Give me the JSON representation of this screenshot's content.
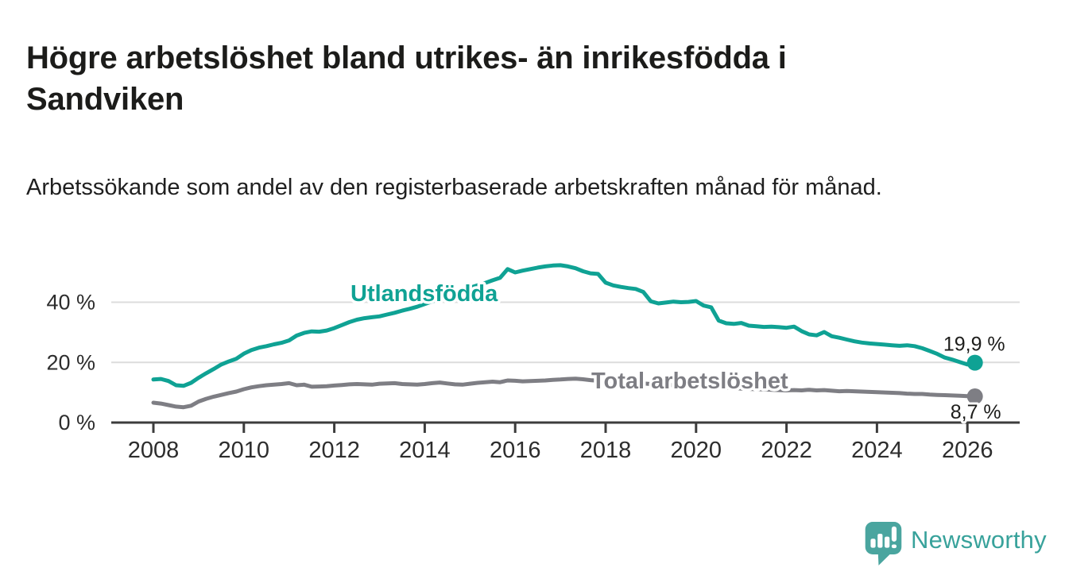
{
  "header": {
    "title": "Högre arbetslöshet bland utrikes- än inrikesfödda i Sandviken",
    "subtitle": "Arbetssökande som andel av den registerbaserade arbetskraften månad för månad."
  },
  "branding": {
    "logo_text": "Newsworthy",
    "logo_color": "#4aa59f",
    "logo_text_color": "#38a29b"
  },
  "chart_data": {
    "type": "line",
    "title": "Högre arbetslöshet bland utrikes- än inrikesfödda i Sandviken",
    "subtitle": "Arbetssökande som andel av den registerbaserade arbetskraften månad för månad.",
    "unit": "%",
    "x_start": 2008,
    "x_step": 0.1666667,
    "xlim": [
      2007.05,
      2027.15
    ],
    "ylim": [
      0,
      56
    ],
    "grid": "horizontal-only",
    "legend_position": "inline-labels",
    "x_ticks": [
      2008,
      2010,
      2012,
      2014,
      2016,
      2018,
      2020,
      2022,
      2024,
      2026
    ],
    "x_tick_labels": [
      "2008",
      "2010",
      "2012",
      "2014",
      "2016",
      "2018",
      "2020",
      "2022",
      "2024",
      "2026"
    ],
    "y_ticks": [
      0,
      20,
      40
    ],
    "y_tick_labels": [
      "0 %",
      "20 %",
      "40 %"
    ],
    "colors": {
      "grid": "#dcdcdc",
      "axis": "#3c3c3c",
      "tick_text": "#2d2d2d",
      "annotation_text": "#1d1d1b"
    },
    "series": [
      {
        "name": "Utlandsfödda",
        "color": "#0fa294",
        "end_label": "19,9 %",
        "end_value": 19.9,
        "values": [
          14.3,
          14.5,
          13.8,
          12.4,
          12.2,
          13.2,
          14.9,
          16.4,
          17.8,
          19.3,
          20.3,
          21.2,
          22.9,
          24.1,
          24.9,
          25.4,
          26.0,
          26.5,
          27.3,
          28.9,
          29.8,
          30.3,
          30.2,
          30.6,
          31.4,
          32.4,
          33.4,
          34.2,
          34.7,
          35.0,
          35.3,
          35.9,
          36.5,
          37.2,
          37.8,
          38.5,
          39.4,
          40.3,
          41.2,
          42.2,
          43.1,
          44.0,
          44.8,
          45.6,
          46.4,
          47.3,
          48.1,
          51.0,
          49.9,
          50.5,
          51.0,
          51.5,
          51.9,
          52.2,
          52.3,
          51.9,
          51.3,
          50.3,
          49.6,
          49.4,
          46.5,
          45.6,
          45.1,
          44.7,
          44.4,
          43.4,
          40.3,
          39.6,
          39.9,
          40.2,
          40.0,
          40.1,
          40.4,
          38.9,
          38.3,
          33.9,
          33.0,
          32.8,
          33.1,
          32.2,
          32.0,
          31.8,
          31.9,
          31.7,
          31.5,
          31.9,
          30.4,
          29.3,
          29.0,
          30.1,
          28.7,
          28.2,
          27.6,
          27.0,
          26.6,
          26.3,
          26.1,
          25.9,
          25.7,
          25.5,
          25.7,
          25.4,
          24.7,
          23.8,
          22.8,
          21.6,
          20.9,
          20.1,
          19.3,
          19.9
        ]
      },
      {
        "name": "Total arbetslöshet",
        "color": "#7e7e84",
        "end_label": "8,7 %",
        "end_value": 8.7,
        "values": [
          6.6,
          6.3,
          5.8,
          5.3,
          5.1,
          5.6,
          7.0,
          7.9,
          8.6,
          9.2,
          9.8,
          10.3,
          11.1,
          11.7,
          12.1,
          12.4,
          12.6,
          12.8,
          13.1,
          12.4,
          12.6,
          11.9,
          12.0,
          12.1,
          12.3,
          12.5,
          12.7,
          12.8,
          12.7,
          12.6,
          12.9,
          13.0,
          13.1,
          12.8,
          12.7,
          12.6,
          12.8,
          13.1,
          13.3,
          13.0,
          12.7,
          12.6,
          12.9,
          13.2,
          13.4,
          13.6,
          13.4,
          14.0,
          13.9,
          13.7,
          13.8,
          13.9,
          14.0,
          14.2,
          14.3,
          14.5,
          14.6,
          14.4,
          14.1,
          13.9,
          13.8,
          13.7,
          13.5,
          13.3,
          13.2,
          13.0,
          12.8,
          12.7,
          12.6,
          12.4,
          12.3,
          12.2,
          12.1,
          12.0,
          11.9,
          11.7,
          11.6,
          11.5,
          11.3,
          11.2,
          11.1,
          11.0,
          10.9,
          10.8,
          10.7,
          10.8,
          10.7,
          10.9,
          10.7,
          10.8,
          10.6,
          10.4,
          10.5,
          10.4,
          10.3,
          10.2,
          10.1,
          10.0,
          9.9,
          9.8,
          9.6,
          9.5,
          9.5,
          9.3,
          9.2,
          9.1,
          9.0,
          8.9,
          8.8,
          8.7
        ]
      }
    ]
  }
}
